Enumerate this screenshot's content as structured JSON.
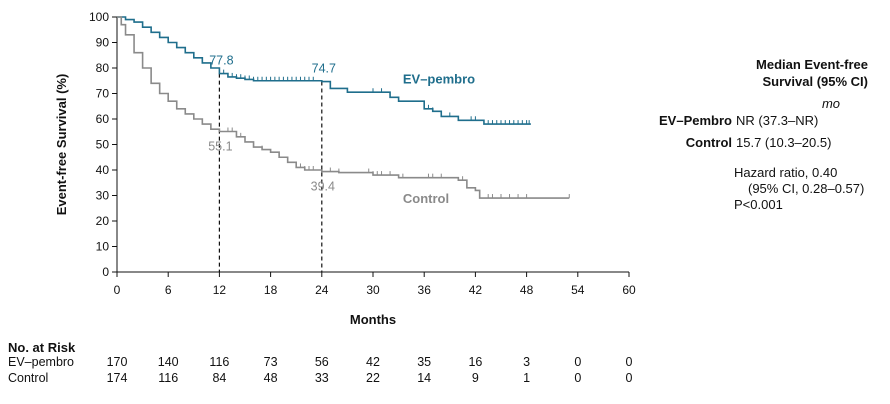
{
  "chart_data": {
    "type": "line",
    "ylabel": "Event-free Survival (%)",
    "xlabel": "Months",
    "xlim": [
      0,
      60
    ],
    "ylim": [
      0,
      100
    ],
    "xticks": [
      0,
      6,
      12,
      18,
      24,
      30,
      36,
      42,
      48,
      54,
      60
    ],
    "yticks": [
      0,
      10,
      20,
      30,
      40,
      50,
      60,
      70,
      80,
      90,
      100
    ],
    "series": [
      {
        "name": "EV–pembro",
        "color": "#1f6e8c",
        "points": [
          [
            0,
            100
          ],
          [
            0.5,
            100
          ],
          [
            1,
            99
          ],
          [
            2,
            98
          ],
          [
            3,
            96
          ],
          [
            4,
            94
          ],
          [
            5,
            92
          ],
          [
            6,
            90
          ],
          [
            7,
            88
          ],
          [
            8,
            86
          ],
          [
            9,
            84
          ],
          [
            10,
            82
          ],
          [
            11,
            80
          ],
          [
            12,
            77.8
          ],
          [
            13,
            76.5
          ],
          [
            14,
            76
          ],
          [
            15,
            75.5
          ],
          [
            16,
            75
          ],
          [
            18,
            75
          ],
          [
            20,
            75
          ],
          [
            22,
            75
          ],
          [
            24,
            74.7
          ],
          [
            25,
            72
          ],
          [
            26,
            72
          ],
          [
            27,
            70.5
          ],
          [
            29,
            70.5
          ],
          [
            31,
            70.5
          ],
          [
            32,
            68.5
          ],
          [
            33,
            67
          ],
          [
            35,
            67
          ],
          [
            36,
            64
          ],
          [
            37,
            63
          ],
          [
            38,
            61
          ],
          [
            39,
            61
          ],
          [
            40,
            59.5
          ],
          [
            41,
            59.5
          ],
          [
            42,
            59.5
          ],
          [
            43,
            58
          ],
          [
            48.5,
            58
          ]
        ]
      },
      {
        "name": "Control",
        "color": "#8a8a8a",
        "points": [
          [
            0,
            100
          ],
          [
            0.5,
            97
          ],
          [
            1,
            93
          ],
          [
            2,
            86
          ],
          [
            3,
            80
          ],
          [
            4,
            74
          ],
          [
            5,
            70
          ],
          [
            6,
            67
          ],
          [
            7,
            64
          ],
          [
            8,
            62
          ],
          [
            9,
            60
          ],
          [
            10,
            58
          ],
          [
            11,
            56
          ],
          [
            12,
            55.1
          ],
          [
            14,
            53
          ],
          [
            15,
            51
          ],
          [
            16,
            49
          ],
          [
            17,
            48
          ],
          [
            18,
            47
          ],
          [
            19,
            45
          ],
          [
            20,
            43
          ],
          [
            21,
            41
          ],
          [
            22,
            40
          ],
          [
            23,
            40
          ],
          [
            24,
            39.4
          ],
          [
            26,
            39
          ],
          [
            30,
            38
          ],
          [
            33,
            37
          ],
          [
            40,
            36
          ],
          [
            41,
            33
          ],
          [
            42,
            32
          ],
          [
            42.5,
            29
          ],
          [
            53,
            29
          ]
        ]
      }
    ],
    "annotations": [
      {
        "x": 12,
        "y": 77.8,
        "label": "77.8",
        "series": "EV–pembro"
      },
      {
        "x": 24,
        "y": 74.7,
        "label": "74.7",
        "series": "EV–pembro"
      },
      {
        "x": 12,
        "y": 55.1,
        "label": "55.1",
        "series": "Control"
      },
      {
        "x": 24,
        "y": 39.4,
        "label": "39.4",
        "series": "Control"
      }
    ]
  },
  "legend": {
    "title_line1": "Median Event-free",
    "title_line2": "Survival (95% CI)",
    "unit": "mo",
    "rows": [
      {
        "name": "EV–Pembro",
        "value": "NR (37.3–NR)"
      },
      {
        "name": "Control",
        "value": "15.7 (10.3–20.5)"
      }
    ],
    "hr_line1": "Hazard ratio, 0.40",
    "hr_line2": "(95% CI, 0.28–0.57)",
    "p_value": "P<0.001"
  },
  "risk_table": {
    "title": "No. at Risk",
    "rows": [
      {
        "name": "EV–pembro",
        "values": [
          "170",
          "140",
          "116",
          "73",
          "56",
          "42",
          "35",
          "16",
          "3",
          "0",
          "0"
        ]
      },
      {
        "name": "Control",
        "values": [
          "174",
          "116",
          "84",
          "48",
          "33",
          "22",
          "14",
          "9",
          "1",
          "0",
          "0"
        ]
      }
    ]
  }
}
